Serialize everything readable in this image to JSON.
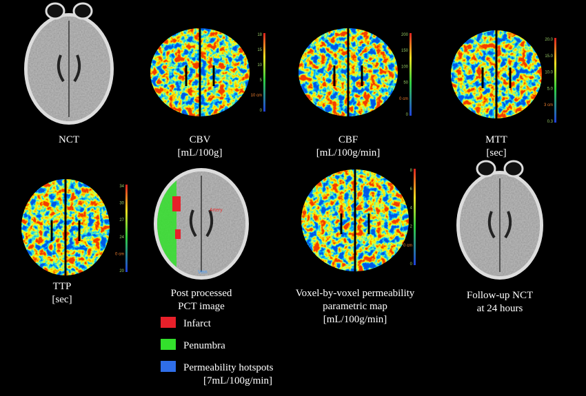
{
  "panels": [
    {
      "caption": [
        "NCT"
      ]
    },
    {
      "caption": [
        "CBV",
        "[mL/100g]"
      ],
      "scale": [
        "18",
        "15",
        "10",
        "5",
        "10 cm",
        "0"
      ]
    },
    {
      "caption": [
        "CBF",
        "[mL/100g/min]"
      ],
      "scale": [
        "200",
        "150",
        "100",
        "50",
        "0 cm",
        "0"
      ]
    },
    {
      "caption": [
        "MTT",
        "[sec]"
      ],
      "scale": [
        "20.0",
        "15.0",
        "10.0",
        "5.0",
        "3 cm",
        "0.3"
      ]
    },
    {
      "caption": [
        "TTP",
        "[sec]"
      ],
      "scale": [
        "34",
        "30",
        "27",
        "24",
        "0 cm",
        "20"
      ]
    },
    {
      "caption": [
        "Post processed",
        "PCT image"
      ],
      "annotations": [
        "Artery",
        "Vein"
      ]
    },
    {
      "caption": [
        "Voxel-by-voxel permeability",
        "parametric map",
        "[mL/100g/min]"
      ],
      "scale": [
        "8",
        "6",
        "4",
        "2",
        "0 cm",
        "0"
      ]
    },
    {
      "caption": [
        "Follow-up NCT",
        "at 24 hours"
      ]
    }
  ],
  "legend": [
    {
      "label": "Infarct",
      "color": "#e8202a"
    },
    {
      "label": "Penumbra",
      "color": "#33e02c"
    },
    {
      "label": "Permeability hotspots",
      "color": "#2f6ee8"
    }
  ],
  "legend_note": "[7mL/100g/min]"
}
